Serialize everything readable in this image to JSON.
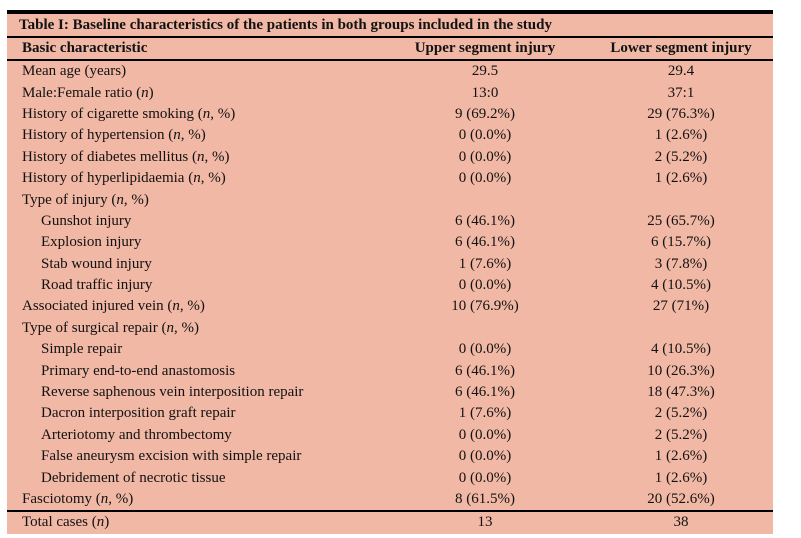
{
  "table": {
    "title": "Table I: Baseline characteristics of the patients in both groups included in the study",
    "colors": {
      "background": "#f0b8a5",
      "rule": "#000000",
      "text": "#121212"
    },
    "columns": [
      "Basic characteristic",
      "Upper segment injury",
      "Lower segment injury"
    ],
    "rows": [
      {
        "label": "Mean age (years)",
        "indent": false,
        "upper": "29.5",
        "lower": "29.4"
      },
      {
        "label": "Male:Female ratio (n)",
        "indent": false,
        "upper": "13:0",
        "lower": "37:1"
      },
      {
        "label": "History of cigarette smoking (n, %)",
        "indent": false,
        "upper": "9 (69.2%)",
        "lower": "29 (76.3%)"
      },
      {
        "label": "History of hypertension (n, %)",
        "indent": false,
        "upper": "0 (0.0%)",
        "lower": "1 (2.6%)"
      },
      {
        "label": "History of diabetes mellitus (n, %)",
        "indent": false,
        "upper": "0 (0.0%)",
        "lower": "2 (5.2%)"
      },
      {
        "label": "History of hyperlipidaemia (n, %)",
        "indent": false,
        "upper": "0 (0.0%)",
        "lower": "1 (2.6%)"
      },
      {
        "label": "Type of injury (n, %)",
        "indent": false,
        "upper": "",
        "lower": ""
      },
      {
        "label": "Gunshot injury",
        "indent": true,
        "upper": "6 (46.1%)",
        "lower": "25 (65.7%)"
      },
      {
        "label": "Explosion injury",
        "indent": true,
        "upper": "6 (46.1%)",
        "lower": "6 (15.7%)"
      },
      {
        "label": "Stab wound injury",
        "indent": true,
        "upper": "1 (7.6%)",
        "lower": "3 (7.8%)"
      },
      {
        "label": "Road traffic injury",
        "indent": true,
        "upper": "0 (0.0%)",
        "lower": "4 (10.5%)"
      },
      {
        "label": "Associated injured vein (n, %)",
        "indent": false,
        "upper": "10 (76.9%)",
        "lower": "27 (71%)"
      },
      {
        "label": "Type of surgical repair (n, %)",
        "indent": false,
        "upper": "",
        "lower": ""
      },
      {
        "label": "Simple repair",
        "indent": true,
        "upper": "0 (0.0%)",
        "lower": "4 (10.5%)"
      },
      {
        "label": "Primary end-to-end anastomosis",
        "indent": true,
        "upper": "6 (46.1%)",
        "lower": "10 (26.3%)"
      },
      {
        "label": "Reverse saphenous vein interposition repair",
        "indent": true,
        "upper": "6 (46.1%)",
        "lower": "18 (47.3%)"
      },
      {
        "label": "Dacron interposition graft repair",
        "indent": true,
        "upper": "1 (7.6%)",
        "lower": "2 (5.2%)"
      },
      {
        "label": "Arteriotomy and thrombectomy",
        "indent": true,
        "upper": "0 (0.0%)",
        "lower": "2 (5.2%)"
      },
      {
        "label": "False aneurysm excision with simple repair",
        "indent": true,
        "upper": "0 (0.0%)",
        "lower": "1 (2.6%)"
      },
      {
        "label": "Debridement of necrotic tissue",
        "indent": true,
        "upper": "0 (0.0%)",
        "lower": "1 (2.6%)"
      },
      {
        "label": "Fasciotomy (n, %)",
        "indent": false,
        "upper": "8 (61.5%)",
        "lower": "20 (52.6%)"
      }
    ],
    "footer_row": {
      "label": "Total cases (n)",
      "upper": "13",
      "lower": "38"
    }
  }
}
